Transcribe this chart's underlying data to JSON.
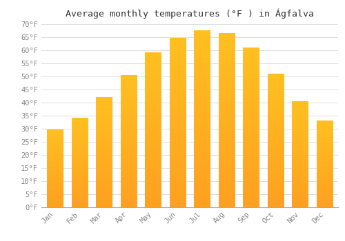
{
  "title": "Average monthly temperatures (°F ) in Ágfalva",
  "months": [
    "Jan",
    "Feb",
    "Mar",
    "Apr",
    "May",
    "Jun",
    "Jul",
    "Aug",
    "Sep",
    "Oct",
    "Nov",
    "Dec"
  ],
  "values": [
    29.5,
    34.0,
    42.0,
    50.5,
    59.0,
    64.5,
    67.5,
    66.5,
    61.0,
    51.0,
    40.5,
    33.0
  ],
  "ylim": [
    0,
    70
  ],
  "yticks": [
    0,
    5,
    10,
    15,
    20,
    25,
    30,
    35,
    40,
    45,
    50,
    55,
    60,
    65,
    70
  ],
  "bar_color_top": "#FFC020",
  "bar_color_bottom": "#FFA020",
  "background_color": "#ffffff",
  "grid_color": "#dddddd",
  "title_fontsize": 9.5,
  "tick_fontsize": 7.5,
  "title_font": "monospace"
}
